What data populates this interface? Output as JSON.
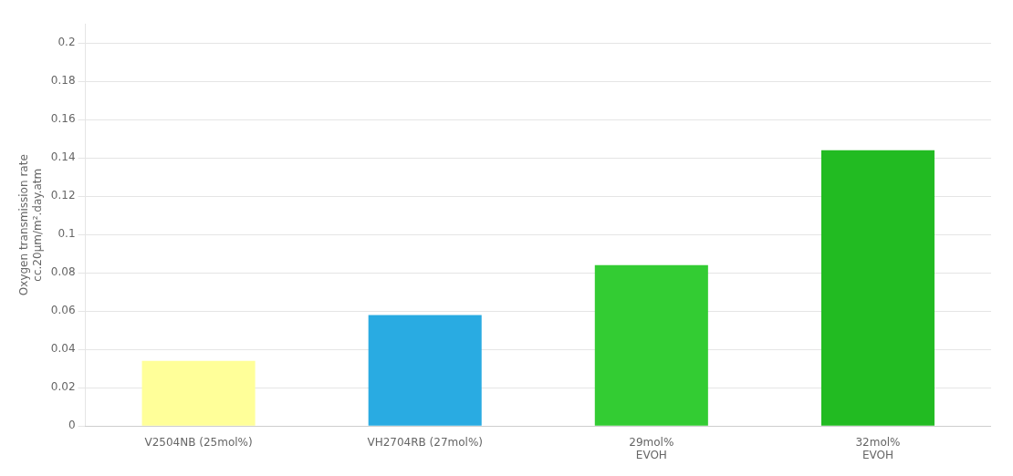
{
  "chart_data": {
    "type": "bar",
    "categories": [
      "V2504NB (25mol%)",
      "VH2704RB (27mol%)",
      "29mol%\nEVOH",
      "32mol%\nEVOH"
    ],
    "values": [
      0.034,
      0.058,
      0.084,
      0.144
    ],
    "colors": [
      "#FFFF99",
      "#29ABE2",
      "#33CC33",
      "#22BB22"
    ],
    "ylabel": "Oxygen transmission rate\ncc.20μm/m².day.atm",
    "ylim": [
      0,
      0.21
    ],
    "yticks": [
      0,
      0.02,
      0.04,
      0.06,
      0.08,
      0.1,
      0.12,
      0.14,
      0.16,
      0.18,
      0.2
    ],
    "grid": true
  }
}
